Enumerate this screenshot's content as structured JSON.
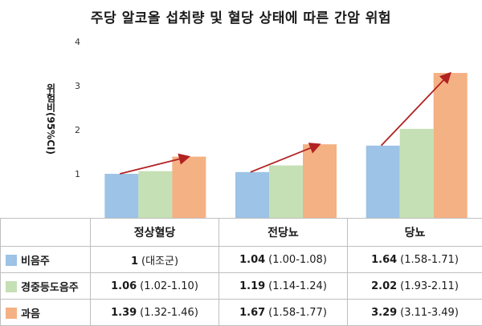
{
  "chart_data": {
    "type": "bar",
    "title": "주당 알코올 섭취량 및 혈당 상태에 따른 간암 위험",
    "ylabel": "위험비(95%CI)",
    "ylim": [
      0,
      4
    ],
    "yticks": [
      "1",
      "2",
      "3",
      "4"
    ],
    "grid": false,
    "categories": [
      "정상혈당",
      "전당뇨",
      "당뇨"
    ],
    "series": [
      {
        "name": "비음주",
        "color": "#9dc3e6",
        "values": [
          1,
          1.04,
          1.64
        ],
        "ci": [
          "(대조군)",
          "(1.00-1.08)",
          "(1.58-1.71)"
        ]
      },
      {
        "name": "경중등도음주",
        "color": "#c5e0b4",
        "values": [
          1.06,
          1.19,
          2.02
        ],
        "ci": [
          "(1.02-1.10)",
          "(1.14-1.24)",
          "(1.93-2.11)"
        ]
      },
      {
        "name": "과음",
        "color": "#f4b183",
        "values": [
          1.39,
          1.67,
          3.29
        ],
        "ci": [
          "(1.32-1.46)",
          "(1.58-1.77)",
          "(3.11-3.49)"
        ]
      }
    ],
    "arrow_color": "#b22222"
  }
}
